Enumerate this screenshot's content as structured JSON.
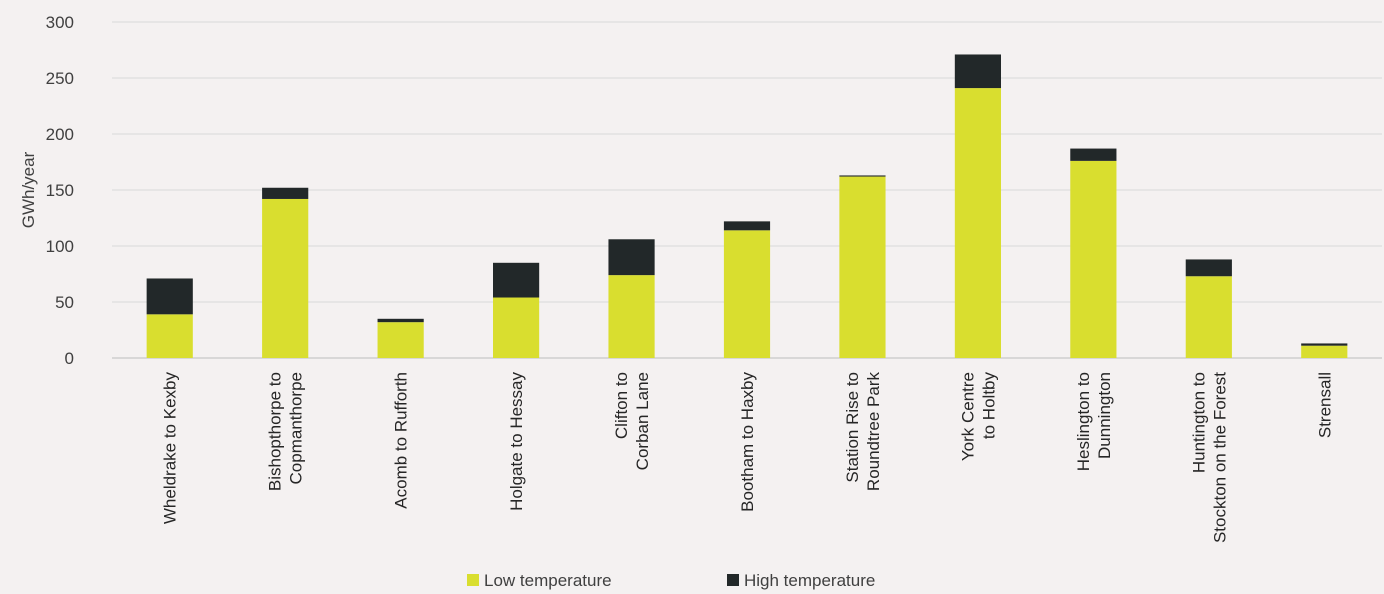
{
  "chart_data": {
    "type": "bar",
    "stacked": true,
    "title": "",
    "xlabel": "",
    "ylabel": "GWh/year",
    "ylim": [
      0,
      300
    ],
    "yticks": [
      0,
      50,
      100,
      150,
      200,
      250,
      300
    ],
    "grid": true,
    "legend_position": "bottom",
    "categories": [
      [
        "Wheldrake to Kexby"
      ],
      [
        "Bishopthorpe to",
        "Copmanthorpe"
      ],
      [
        "Acomb to Rufforth"
      ],
      [
        "Holgate to Hessay"
      ],
      [
        "Clifton to",
        "Corban Lane"
      ],
      [
        "Bootham to Haxby"
      ],
      [
        "Station Rise to",
        "Roundtree Park"
      ],
      [
        "York Centre",
        "to Holtby"
      ],
      [
        "Heslington to",
        "Dunnington"
      ],
      [
        "Huntington to",
        "Stockton on the Forest"
      ],
      [
        "Strensall"
      ]
    ],
    "series": [
      {
        "name": "Low temperature",
        "color": "#d9de2f",
        "values": [
          39,
          142,
          32,
          54,
          74,
          114,
          162,
          241,
          176,
          73,
          11
        ]
      },
      {
        "name": "High temperature",
        "color": "#222829",
        "values": [
          32,
          10,
          3,
          31,
          32,
          8,
          1,
          30,
          11,
          15,
          2
        ]
      }
    ]
  }
}
